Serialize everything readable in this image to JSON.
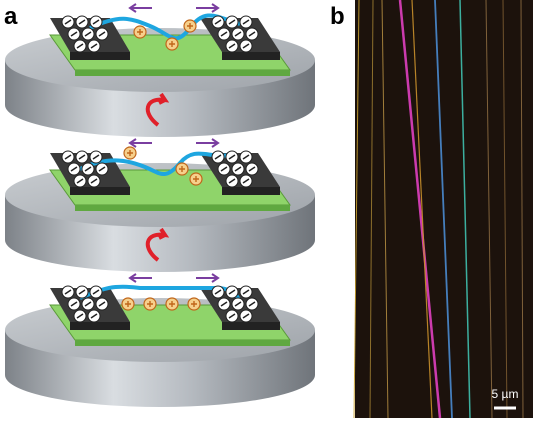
{
  "panels": [
    {
      "label": "a"
    },
    {
      "label": "b",
      "scale_bar": "5 µm"
    }
  ]
}
